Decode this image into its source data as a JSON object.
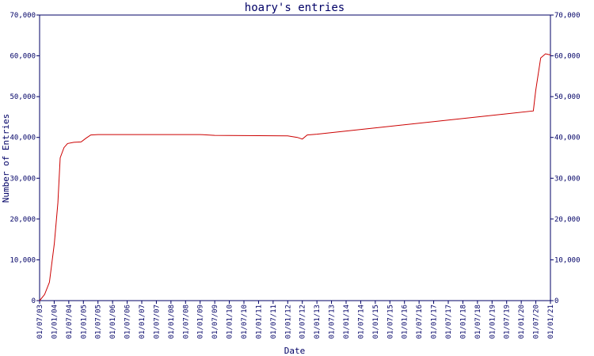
{
  "chart_data": {
    "type": "line",
    "title": "hoary's entries",
    "xlabel": "Date",
    "ylabel": "Number of Entries",
    "ylim": [
      0,
      70000
    ],
    "yticks": [
      {
        "value": 0,
        "label": "0"
      },
      {
        "value": 10000,
        "label": "10,000"
      },
      {
        "value": 20000,
        "label": "20,000"
      },
      {
        "value": 30000,
        "label": "30,000"
      },
      {
        "value": 40000,
        "label": "40,000"
      },
      {
        "value": 50000,
        "label": "50,000"
      },
      {
        "value": 60000,
        "label": "60,000"
      },
      {
        "value": 70000,
        "label": "70,000"
      }
    ],
    "xlim": [
      "2003-07-01",
      "2021-01-01"
    ],
    "xticks": [
      "01/07/03",
      "01/01/04",
      "01/07/04",
      "01/01/05",
      "01/07/05",
      "01/01/06",
      "01/07/06",
      "01/01/07",
      "01/07/07",
      "01/01/08",
      "01/07/08",
      "01/01/09",
      "01/07/09",
      "01/01/10",
      "01/07/10",
      "01/01/11",
      "01/07/11",
      "01/01/12",
      "01/07/12",
      "01/01/13",
      "01/07/13",
      "01/01/14",
      "01/07/14",
      "01/01/15",
      "01/07/15",
      "01/01/16",
      "01/07/16",
      "01/01/17",
      "01/07/17",
      "01/01/18",
      "01/07/18",
      "01/01/19",
      "01/07/19",
      "01/01/20",
      "01/07/20",
      "01/01/21"
    ],
    "grid": false,
    "color": "#cc0000",
    "series": [
      {
        "points": [
          [
            "2003-07-01",
            0
          ],
          [
            "2003-09-01",
            1500
          ],
          [
            "2003-11-01",
            4500
          ],
          [
            "2004-01-01",
            14000
          ],
          [
            "2004-02-15",
            24000
          ],
          [
            "2004-03-15",
            35000
          ],
          [
            "2004-05-01",
            37500
          ],
          [
            "2004-06-15",
            38500
          ],
          [
            "2004-09-01",
            38800
          ],
          [
            "2004-12-01",
            38900
          ],
          [
            "2005-02-01",
            39800
          ],
          [
            "2005-04-01",
            40600
          ],
          [
            "2005-07-01",
            40700
          ],
          [
            "2009-01-01",
            40700
          ],
          [
            "2009-07-01",
            40500
          ],
          [
            "2012-01-01",
            40400
          ],
          [
            "2012-05-01",
            40000
          ],
          [
            "2012-07-01",
            39600
          ],
          [
            "2012-09-01",
            40600
          ],
          [
            "2013-01-01",
            40800
          ],
          [
            "2020-06-01",
            46500
          ],
          [
            "2020-07-01",
            51500
          ],
          [
            "2020-09-01",
            59500
          ],
          [
            "2020-11-01",
            60500
          ],
          [
            "2021-01-01",
            60200
          ]
        ]
      }
    ]
  }
}
